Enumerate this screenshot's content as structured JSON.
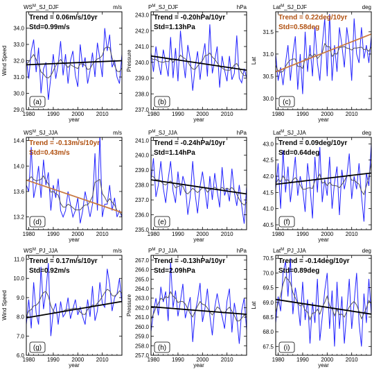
{
  "chart_data": [
    {
      "type": "line",
      "panel_label": "(a)",
      "title_base": "WS",
      "title_sup": "M",
      "title_rest": "_SJ_DJF",
      "unit": "m/s",
      "ylabel": "Wind Speed",
      "xlabel": "year",
      "xlim": [
        1979,
        2018
      ],
      "xticks": [
        1980,
        1990,
        2000,
        2010
      ],
      "ylim": [
        29.0,
        35.0
      ],
      "yticks": [
        29.0,
        30.0,
        31.0,
        32.0,
        33.0,
        34.0
      ],
      "trend_text": "Trend = 0.06m/s/10yr",
      "std_text": "Std=0.99m/s",
      "annotation_color": "#000000",
      "trend_color": "#000000",
      "trend_line": {
        "x": [
          1979,
          2018
        ],
        "y": [
          31.75,
          32.0
        ]
      },
      "series": [
        {
          "values": [
            32.1,
            30.9,
            32.6,
            33.3,
            31.3,
            32.8,
            30.0,
            31.5,
            31.9,
            29.6,
            31.0,
            32.4,
            30.9,
            31.8,
            33.2,
            31.1,
            32.4,
            30.6,
            32.0,
            32.6,
            31.1,
            30.4,
            33.0,
            31.6,
            32.2,
            30.6,
            31.4,
            32.5,
            31.0,
            33.1,
            32.1,
            31.0,
            34.0,
            32.6,
            33.6,
            31.6,
            32.0,
            31.0,
            30.6,
            32.4
          ]
        }
      ]
    },
    {
      "type": "line",
      "panel_label": "(d)",
      "title_base": "WS",
      "title_sup": "M",
      "title_rest": "_SJ_JJA",
      "unit": "m/s",
      "ylabel": "",
      "xlabel": "year",
      "xlim": [
        1979,
        2018
      ],
      "xticks": [
        1980,
        1990,
        2000,
        2010
      ],
      "ylim": [
        13.0,
        14.45
      ],
      "yticks": [
        13.2,
        13.6,
        14.0,
        14.4
      ],
      "trend_text": "Trend = -0.13m/s/10yr",
      "std_text": "Std=0.43m/s",
      "annotation_color": "#b05010",
      "trend_color": "#c87a44",
      "trend_line": {
        "x": [
          1979,
          2018
        ],
        "y": [
          13.78,
          13.27
        ]
      },
      "series": [
        {
          "values": [
            13.7,
            13.6,
            14.3,
            13.5,
            13.7,
            14.0,
            13.5,
            14.1,
            13.7,
            13.9,
            13.3,
            13.7,
            13.5,
            13.8,
            13.3,
            13.2,
            13.3,
            13.6,
            13.4,
            13.2,
            13.3,
            13.5,
            13.1,
            13.3,
            13.6,
            13.4,
            13.2,
            13.4,
            14.2,
            13.3,
            14.5,
            13.2,
            13.4,
            13.4,
            13.7,
            13.3,
            13.5,
            13.2,
            13.3,
            13.2
          ]
        }
      ]
    },
    {
      "type": "line",
      "panel_label": "(g)",
      "title_base": "WS",
      "title_sup": "M",
      "title_rest": "_PJ_JJA",
      "unit": "m/s",
      "ylabel": "Wind Speed",
      "xlabel": "year",
      "xlim": [
        1979,
        2018
      ],
      "xticks": [
        1980,
        1990,
        2000,
        2010
      ],
      "ylim": [
        6.0,
        11.2
      ],
      "yticks": [
        6.0,
        7.0,
        8.0,
        9.0,
        10.0,
        11.0
      ],
      "trend_text": "Trend = 0.17m/s/10yr",
      "std_text": "Std=0.92m/s",
      "annotation_color": "#000000",
      "trend_color": "#000000",
      "trend_line": {
        "x": [
          1979,
          2018
        ],
        "y": [
          7.95,
          8.8
        ]
      },
      "series": [
        {
          "values": [
            7.6,
            8.9,
            7.4,
            9.8,
            8.2,
            7.6,
            10.6,
            8.4,
            9.3,
            10.8,
            7.0,
            8.3,
            8.7,
            7.6,
            8.8,
            8.0,
            8.2,
            9.0,
            7.9,
            8.4,
            8.9,
            8.1,
            8.5,
            8.0,
            7.6,
            8.9,
            8.0,
            9.6,
            7.8,
            8.3,
            9.8,
            8.7,
            8.5,
            10.5,
            9.7,
            8.3,
            9.0,
            9.2,
            10.0,
            8.7
          ]
        }
      ]
    },
    {
      "type": "line",
      "panel_label": "(b)",
      "title_base": "P",
      "title_sup": "M",
      "title_rest": "_SJ_DJF",
      "unit": "hPa",
      "ylabel": "Pressure",
      "xlabel": "year",
      "xlim": [
        1979,
        2018
      ],
      "xticks": [
        1980,
        1990,
        2000,
        2010
      ],
      "ylim": [
        237.0,
        243.2
      ],
      "yticks": [
        237.0,
        238.0,
        239.0,
        240.0,
        241.0,
        242.0,
        243.0
      ],
      "trend_text": "Trend = -0.20hPa/10yr",
      "std_text": "Std=1.13hPa",
      "annotation_color": "#000000",
      "trend_color": "#000000",
      "trend_line": {
        "x": [
          1979,
          2018
        ],
        "y": [
          240.4,
          239.5
        ]
      },
      "series": [
        {
          "values": [
            240.6,
            239.4,
            241.0,
            240.0,
            239.2,
            240.8,
            240.0,
            239.1,
            241.6,
            239.0,
            240.9,
            238.8,
            242.0,
            240.3,
            239.0,
            241.1,
            240.2,
            238.2,
            239.7,
            240.7,
            238.9,
            240.3,
            241.2,
            239.1,
            242.4,
            239.3,
            240.1,
            241.0,
            238.4,
            240.4,
            239.5,
            238.8,
            240.4,
            238.9,
            239.3,
            241.7,
            239.0,
            238.7,
            239.6,
            239.0
          ]
        }
      ]
    },
    {
      "type": "line",
      "panel_label": "(e)",
      "title_base": "P",
      "title_sup": "M",
      "title_rest": "_SJ_JJA",
      "unit": "hPa",
      "ylabel": "",
      "xlabel": "year",
      "xlim": [
        1979,
        2018
      ],
      "xticks": [
        1980,
        1990,
        2000,
        2010
      ],
      "ylim": [
        235.0,
        241.2
      ],
      "yticks": [
        235.0,
        236.0,
        237.0,
        238.0,
        239.0,
        240.0,
        241.0
      ],
      "trend_text": "Trend = -0.24hPa/10yr",
      "std_text": "Std=1.14hPa",
      "annotation_color": "#000000",
      "trend_color": "#000000",
      "trend_line": {
        "x": [
          1979,
          2018
        ],
        "y": [
          238.35,
          237.4
        ]
      },
      "series": [
        {
          "values": [
            238.3,
            239.8,
            237.2,
            238.0,
            239.6,
            237.8,
            236.8,
            238.4,
            239.6,
            237.6,
            236.8,
            238.9,
            237.3,
            238.6,
            238.0,
            236.0,
            237.2,
            239.6,
            237.4,
            236.1,
            237.9,
            238.9,
            237.7,
            236.4,
            238.6,
            237.0,
            238.8,
            237.6,
            236.5,
            239.2,
            237.3,
            237.8,
            236.9,
            239.1,
            237.5,
            236.6,
            238.0,
            236.6,
            235.4,
            237.9
          ]
        }
      ]
    },
    {
      "type": "line",
      "panel_label": "(h)",
      "title_base": "P",
      "title_sup": "M",
      "title_rest": "_PJ_JJA",
      "unit": "hPa",
      "ylabel": "Pressure",
      "xlabel": "year",
      "xlim": [
        1979,
        2018
      ],
      "xticks": [
        1980,
        1990,
        2000,
        2010
      ],
      "ylim": [
        257.0,
        267.5
      ],
      "yticks": [
        257.0,
        258.0,
        259.0,
        260.0,
        261.0,
        262.0,
        263.0,
        264.0,
        265.0,
        266.0,
        267.0
      ],
      "trend_text": "Trend = -0.13hPa/10yr",
      "std_text": "Std=2.09hPa",
      "annotation_color": "#000000",
      "trend_color": "#000000",
      "trend_line": {
        "x": [
          1979,
          2018
        ],
        "y": [
          262.1,
          261.3
        ]
      },
      "series": [
        {
          "values": [
            259.5,
            261.5,
            263.0,
            261.2,
            264.2,
            262.6,
            263.7,
            260.6,
            266.8,
            262.0,
            263.8,
            261.1,
            262.7,
            264.5,
            260.9,
            262.0,
            263.1,
            258.4,
            261.5,
            262.8,
            264.6,
            260.5,
            261.9,
            264.0,
            261.2,
            259.1,
            262.0,
            263.5,
            262.0,
            261.1,
            259.8,
            262.7,
            264.0,
            259.4,
            262.5,
            261.0,
            258.2,
            261.7,
            263.0,
            259.6
          ]
        }
      ]
    },
    {
      "type": "line",
      "panel_label": "(c)",
      "title_base": "Lat",
      "title_sup": "M",
      "title_rest": "_SJ_DJF",
      "unit": "deg",
      "ylabel": "Lat",
      "xlabel": "year",
      "xlim": [
        1979,
        2018
      ],
      "xticks": [
        1980,
        1990,
        2000,
        2010
      ],
      "ylim": [
        29.75,
        31.95
      ],
      "yticks": [
        30.0,
        30.5,
        31.0,
        31.5
      ],
      "trend_text": "Trend = 0.22deg/10yr",
      "std_text": "Std=0.58deg",
      "annotation_color": "#b05010",
      "trend_color": "#c87a44",
      "trend_line": {
        "x": [
          1979,
          2018
        ],
        "y": [
          30.6,
          31.45
        ]
      },
      "series": [
        {
          "values": [
            31.0,
            30.4,
            30.7,
            30.3,
            30.8,
            31.2,
            30.4,
            31.0,
            31.4,
            30.2,
            31.0,
            30.1,
            31.5,
            30.6,
            31.2,
            30.5,
            31.6,
            30.8,
            30.4,
            31.2,
            31.8,
            30.5,
            31.9,
            30.4,
            31.2,
            30.6,
            31.6,
            31.2,
            30.7,
            31.6,
            31.2,
            30.4,
            31.8,
            31.0,
            30.8,
            31.6,
            30.9,
            31.2,
            30.8,
            31.4
          ]
        }
      ]
    },
    {
      "type": "line",
      "panel_label": "(f)",
      "title_base": "Lat",
      "title_sup": "M",
      "title_rest": "_SJ_JJA",
      "unit": "deg",
      "ylabel": "",
      "xlabel": "year",
      "xlim": [
        1979,
        2018
      ],
      "xticks": [
        1980,
        1990,
        2000,
        2010
      ],
      "ylim": [
        40.35,
        43.2
      ],
      "yticks": [
        40.5,
        41.0,
        41.5,
        42.0,
        42.5,
        43.0
      ],
      "trend_text": "Trend = 0.09deg/10yr",
      "std_text": "Std=0.64deg",
      "annotation_color": "#000000",
      "trend_color": "#000000",
      "trend_line": {
        "x": [
          1979,
          2018
        ],
        "y": [
          41.75,
          42.1
        ]
      },
      "series": [
        {
          "values": [
            41.6,
            42.4,
            41.0,
            42.8,
            41.5,
            42.3,
            41.2,
            41.9,
            42.6,
            41.4,
            42.0,
            41.6,
            40.9,
            42.4,
            41.7,
            40.7,
            42.6,
            41.5,
            42.9,
            41.2,
            41.9,
            41.4,
            42.6,
            41.0,
            41.8,
            42.3,
            40.8,
            42.2,
            41.6,
            42.0,
            42.7,
            41.3,
            42.0,
            41.6,
            42.4,
            41.4,
            40.6,
            42.1,
            41.7,
            43.0
          ]
        }
      ]
    },
    {
      "type": "line",
      "panel_label": "(i)",
      "title_base": "Lat",
      "title_sup": "M",
      "title_rest": "_PJ_JJA",
      "unit": "deg",
      "ylabel": "Lat",
      "xlabel": "year",
      "xlim": [
        1979,
        2018
      ],
      "xticks": [
        1980,
        1990,
        2000,
        2010
      ],
      "ylim": [
        67.2,
        70.6
      ],
      "yticks": [
        67.5,
        68.0,
        68.5,
        69.0,
        69.5,
        70.0,
        70.5
      ],
      "trend_text": "Trend = -0.14deg/10yr",
      "std_text": "Std=0.89deg",
      "annotation_color": "#000000",
      "trend_color": "#000000",
      "trend_line": {
        "x": [
          1979,
          2018
        ],
        "y": [
          69.1,
          68.6
        ]
      },
      "series": [
        {
          "values": [
            68.3,
            69.2,
            68.7,
            70.0,
            70.4,
            69.2,
            70.5,
            68.6,
            69.5,
            69.0,
            68.2,
            69.7,
            68.4,
            69.1,
            67.6,
            69.0,
            68.3,
            69.8,
            67.7,
            68.5,
            69.4,
            70.0,
            68.1,
            69.4,
            67.5,
            69.7,
            68.1,
            69.2,
            67.6,
            68.7,
            69.8,
            68.1,
            69.0,
            70.0,
            68.3,
            67.5,
            69.3,
            68.3,
            69.8,
            68.6
          ]
        }
      ]
    }
  ],
  "style": {
    "series_color": "#2222ff",
    "smooth_color": "#555555",
    "axis_color": "#000000"
  }
}
